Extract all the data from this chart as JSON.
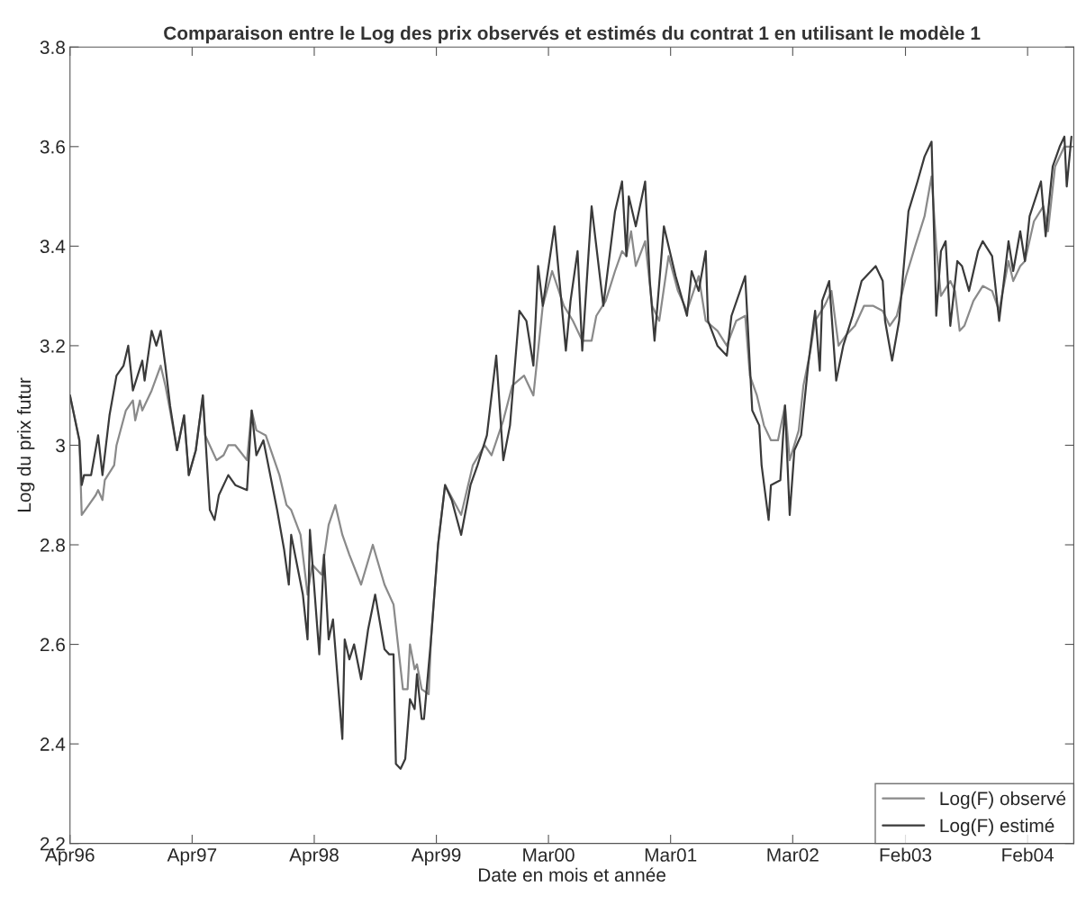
{
  "chart_data": {
    "type": "line",
    "title": "Comparaison entre le Log des prix observés et estimés du contrat 1 en utilisant le modèle 1",
    "xlabel": "Date en mois et année",
    "ylabel": "Log du prix futur",
    "xlim": [
      "1996-04-01",
      "2004-06-18"
    ],
    "xticks": [
      {
        "value": "1996-04",
        "label": "Apr96"
      },
      {
        "value": "1997-04",
        "label": "Apr97"
      },
      {
        "value": "1998-04",
        "label": "Apr98"
      },
      {
        "value": "1999-04",
        "label": "Apr99"
      },
      {
        "value": "2000-03",
        "label": "Mar00"
      },
      {
        "value": "2001-03",
        "label": "Mar01"
      },
      {
        "value": "2002-03",
        "label": "Mar02"
      },
      {
        "value": "2003-02",
        "label": "Feb03"
      },
      {
        "value": "2004-02",
        "label": "Feb04"
      }
    ],
    "ylim": [
      2.2,
      3.8
    ],
    "yticks": [
      2.2,
      2.4,
      2.6,
      2.8,
      3,
      3.2,
      3.4,
      3.6,
      3.8
    ],
    "grid": false,
    "legend": "bottom right",
    "line_style": "solid",
    "marker": "none",
    "series": [
      {
        "name": "Log(F) observé",
        "color": "#8a8a8a",
        "x": [
          "1996-04-01",
          "1996-04-29",
          "1996-05-06",
          "1996-05-27",
          "1996-06-17",
          "1996-06-24",
          "1996-07-07",
          "1996-07-14",
          "1996-08-11",
          "1996-08-18",
          "1996-09-15",
          "1996-10-06",
          "1996-10-13",
          "1996-10-27",
          "1996-11-03",
          "1996-12-01",
          "1996-12-28",
          "1997-01-11",
          "1997-01-25",
          "1997-02-15",
          "1997-03-08",
          "1997-03-22",
          "1997-04-12",
          "1997-05-03",
          "1997-05-10",
          "1997-06-13",
          "1997-07-04",
          "1997-07-18",
          "1997-08-08",
          "1997-09-12",
          "1997-09-26",
          "1997-10-10",
          "1997-11-07",
          "1997-12-18",
          "1998-01-08",
          "1998-01-22",
          "1998-02-19",
          "1998-03-12",
          "1998-03-26",
          "1998-04-23",
          "1998-05-14",
          "1998-06-03",
          "1998-06-24",
          "1998-07-15",
          "1998-08-19",
          "1998-09-23",
          "1998-10-28",
          "1998-11-24",
          "1998-12-22",
          "1999-01-05",
          "1999-01-12",
          "1999-01-26",
          "1999-02-02",
          "1999-02-16",
          "1999-03-09",
          "1999-03-16",
          "1999-04-06",
          "1999-04-27",
          "1999-06-14",
          "1999-07-19",
          "1999-08-23",
          "1999-09-13",
          "1999-10-18",
          "1999-11-14",
          "1999-12-19",
          "2000-01-16",
          "2000-02-13",
          "2000-03-12",
          "2000-04-16",
          "2000-05-13",
          "2000-06-10",
          "2000-07-08",
          "2000-07-22",
          "2000-08-19",
          "2000-09-16",
          "2000-10-07",
          "2000-10-20",
          "2000-11-03",
          "2000-11-17",
          "2000-12-15",
          "2001-01-05",
          "2001-01-26",
          "2001-02-23",
          "2001-03-23",
          "2001-04-19",
          "2001-05-24",
          "2001-06-14",
          "2001-07-19",
          "2001-08-16",
          "2001-09-13",
          "2001-10-10",
          "2001-10-24",
          "2001-11-14",
          "2001-12-05",
          "2001-12-26",
          "2002-01-16",
          "2002-02-06",
          "2002-02-20",
          "2002-03-19",
          "2002-04-02",
          "2002-04-23",
          "2002-05-07",
          "2002-06-04",
          "2002-06-25",
          "2002-07-16",
          "2002-08-06",
          "2002-09-03",
          "2002-09-30",
          "2002-10-28",
          "2002-11-25",
          "2002-12-16",
          "2003-01-06",
          "2003-02-03",
          "2003-03-02",
          "2003-03-30",
          "2003-04-20",
          "2003-05-04",
          "2003-05-18",
          "2003-06-15",
          "2003-06-29",
          "2003-07-13",
          "2003-07-27",
          "2003-08-23",
          "2003-09-20",
          "2003-10-18",
          "2003-11-08",
          "2003-12-06",
          "2003-12-20",
          "2004-01-10",
          "2004-01-24",
          "2004-02-20",
          "2004-03-19",
          "2004-04-02",
          "2004-04-23",
          "2004-05-21",
          "2004-06-11"
        ],
        "values": [
          3.1,
          3.01,
          2.86,
          2.88,
          2.9,
          2.91,
          2.89,
          2.93,
          2.96,
          3.0,
          3.07,
          3.09,
          3.05,
          3.09,
          3.07,
          3.11,
          3.16,
          3.12,
          3.07,
          2.99,
          3.06,
          2.94,
          2.99,
          3.1,
          3.02,
          2.97,
          2.98,
          3.0,
          3.0,
          2.97,
          3.07,
          3.03,
          3.02,
          2.94,
          2.88,
          2.87,
          2.82,
          2.7,
          2.76,
          2.74,
          2.84,
          2.88,
          2.82,
          2.78,
          2.72,
          2.8,
          2.72,
          2.68,
          2.51,
          2.51,
          2.6,
          2.55,
          2.56,
          2.51,
          2.5,
          2.61,
          2.8,
          2.92,
          2.86,
          2.96,
          3.0,
          2.98,
          3.05,
          3.12,
          3.14,
          3.1,
          3.28,
          3.35,
          3.28,
          3.25,
          3.21,
          3.21,
          3.26,
          3.29,
          3.35,
          3.39,
          3.38,
          3.43,
          3.36,
          3.41,
          3.28,
          3.25,
          3.38,
          3.31,
          3.27,
          3.34,
          3.25,
          3.23,
          3.2,
          3.25,
          3.26,
          3.14,
          3.1,
          3.04,
          3.01,
          3.01,
          3.08,
          2.97,
          3.03,
          3.12,
          3.19,
          3.25,
          3.28,
          3.31,
          3.2,
          3.22,
          3.24,
          3.28,
          3.28,
          3.27,
          3.24,
          3.26,
          3.34,
          3.4,
          3.46,
          3.54,
          3.4,
          3.3,
          3.33,
          3.31,
          3.23,
          3.24,
          3.29,
          3.32,
          3.31,
          3.27,
          3.37,
          3.33,
          3.36,
          3.37,
          3.45,
          3.48,
          3.43,
          3.56,
          3.6,
          3.6
        ]
      },
      {
        "name": "Log(F) estimé",
        "color": "#3a3a3a",
        "x": [
          "1996-04-01",
          "1996-04-29",
          "1996-05-06",
          "1996-05-13",
          "1996-06-03",
          "1996-06-24",
          "1996-07-07",
          "1996-07-28",
          "1996-08-18",
          "1996-09-08",
          "1996-09-22",
          "1996-10-06",
          "1996-11-03",
          "1996-11-10",
          "1996-12-01",
          "1996-12-15",
          "1996-12-28",
          "1997-01-11",
          "1997-01-25",
          "1997-02-15",
          "1997-03-08",
          "1997-03-22",
          "1997-04-12",
          "1997-05-03",
          "1997-05-24",
          "1997-06-07",
          "1997-06-20",
          "1997-07-18",
          "1997-08-08",
          "1997-09-12",
          "1997-09-26",
          "1997-10-10",
          "1997-10-31",
          "1997-12-11",
          "1998-01-01",
          "1998-01-15",
          "1998-01-22",
          "1998-02-26",
          "1998-03-12",
          "1998-03-19",
          "1998-04-16",
          "1998-04-30",
          "1998-05-14",
          "1998-05-27",
          "1998-06-24",
          "1998-07-01",
          "1998-07-15",
          "1998-07-29",
          "1998-08-19",
          "1998-09-09",
          "1998-09-30",
          "1998-10-28",
          "1998-11-11",
          "1998-11-24",
          "1998-12-01",
          "1998-12-15",
          "1998-12-29",
          "1999-01-12",
          "1999-01-26",
          "1999-02-02",
          "1999-02-16",
          "1999-02-23",
          "1999-03-16",
          "1999-04-06",
          "1999-04-27",
          "1999-05-17",
          "1999-06-14",
          "1999-07-12",
          "1999-08-02",
          "1999-08-30",
          "1999-09-27",
          "1999-10-18",
          "1999-11-07",
          "1999-12-05",
          "1999-12-26",
          "2000-01-16",
          "2000-01-30",
          "2000-02-13",
          "2000-03-19",
          "2000-04-22",
          "2000-05-06",
          "2000-05-27",
          "2000-06-10",
          "2000-07-08",
          "2000-08-12",
          "2000-09-16",
          "2000-10-07",
          "2000-10-20",
          "2000-10-27",
          "2000-11-17",
          "2000-12-15",
          "2000-12-29",
          "2001-01-12",
          "2001-02-09",
          "2001-03-16",
          "2001-04-19",
          "2001-05-03",
          "2001-05-24",
          "2001-06-14",
          "2001-06-21",
          "2001-07-19",
          "2001-08-16",
          "2001-08-30",
          "2001-10-10",
          "2001-10-24",
          "2001-10-31",
          "2001-11-21",
          "2001-11-28",
          "2001-12-19",
          "2001-12-26",
          "2002-01-23",
          "2002-02-06",
          "2002-02-20",
          "2002-03-06",
          "2002-03-26",
          "2002-04-16",
          "2002-05-07",
          "2002-05-21",
          "2002-05-28",
          "2002-06-18",
          "2002-07-09",
          "2002-07-30",
          "2002-08-27",
          "2002-09-23",
          "2002-11-04",
          "2002-11-25",
          "2002-12-02",
          "2002-12-23",
          "2003-01-13",
          "2003-02-10",
          "2003-03-09",
          "2003-03-30",
          "2003-04-20",
          "2003-05-04",
          "2003-05-18",
          "2003-06-01",
          "2003-06-15",
          "2003-07-06",
          "2003-07-20",
          "2003-08-10",
          "2003-09-06",
          "2003-09-20",
          "2003-10-18",
          "2003-11-08",
          "2003-12-06",
          "2003-12-20",
          "2004-01-10",
          "2004-01-24",
          "2004-02-07",
          "2004-03-12",
          "2004-03-26",
          "2004-04-16",
          "2004-05-07",
          "2004-05-21",
          "2004-05-28",
          "2004-06-11"
        ],
        "values": [
          3.1,
          3.01,
          2.92,
          2.94,
          2.94,
          3.02,
          2.94,
          3.06,
          3.14,
          3.16,
          3.2,
          3.11,
          3.17,
          3.13,
          3.23,
          3.2,
          3.23,
          3.16,
          3.08,
          2.99,
          3.06,
          2.94,
          2.99,
          3.1,
          2.87,
          2.85,
          2.9,
          2.94,
          2.92,
          2.91,
          3.07,
          2.98,
          3.01,
          2.87,
          2.79,
          2.72,
          2.82,
          2.7,
          2.61,
          2.83,
          2.58,
          2.78,
          2.61,
          2.65,
          2.41,
          2.61,
          2.57,
          2.6,
          2.53,
          2.63,
          2.7,
          2.59,
          2.58,
          2.58,
          2.36,
          2.35,
          2.37,
          2.49,
          2.47,
          2.54,
          2.45,
          2.45,
          2.61,
          2.8,
          2.92,
          2.89,
          2.82,
          2.92,
          2.96,
          3.02,
          3.18,
          2.97,
          3.04,
          3.27,
          3.25,
          3.16,
          3.36,
          3.28,
          3.44,
          3.19,
          3.29,
          3.39,
          3.19,
          3.48,
          3.28,
          3.47,
          3.53,
          3.38,
          3.5,
          3.44,
          3.53,
          3.33,
          3.21,
          3.44,
          3.34,
          3.26,
          3.35,
          3.31,
          3.39,
          3.25,
          3.2,
          3.18,
          3.26,
          3.34,
          3.16,
          3.07,
          3.04,
          2.96,
          2.85,
          2.92,
          2.93,
          3.08,
          2.86,
          2.99,
          3.02,
          3.16,
          3.27,
          3.15,
          3.29,
          3.33,
          3.13,
          3.2,
          3.26,
          3.33,
          3.36,
          3.33,
          3.25,
          3.17,
          3.25,
          3.47,
          3.53,
          3.58,
          3.61,
          3.26,
          3.39,
          3.41,
          3.24,
          3.37,
          3.36,
          3.31,
          3.39,
          3.41,
          3.38,
          3.25,
          3.41,
          3.35,
          3.43,
          3.37,
          3.46,
          3.53,
          3.42,
          3.56,
          3.6,
          3.62,
          3.52,
          3.62
        ]
      }
    ]
  }
}
